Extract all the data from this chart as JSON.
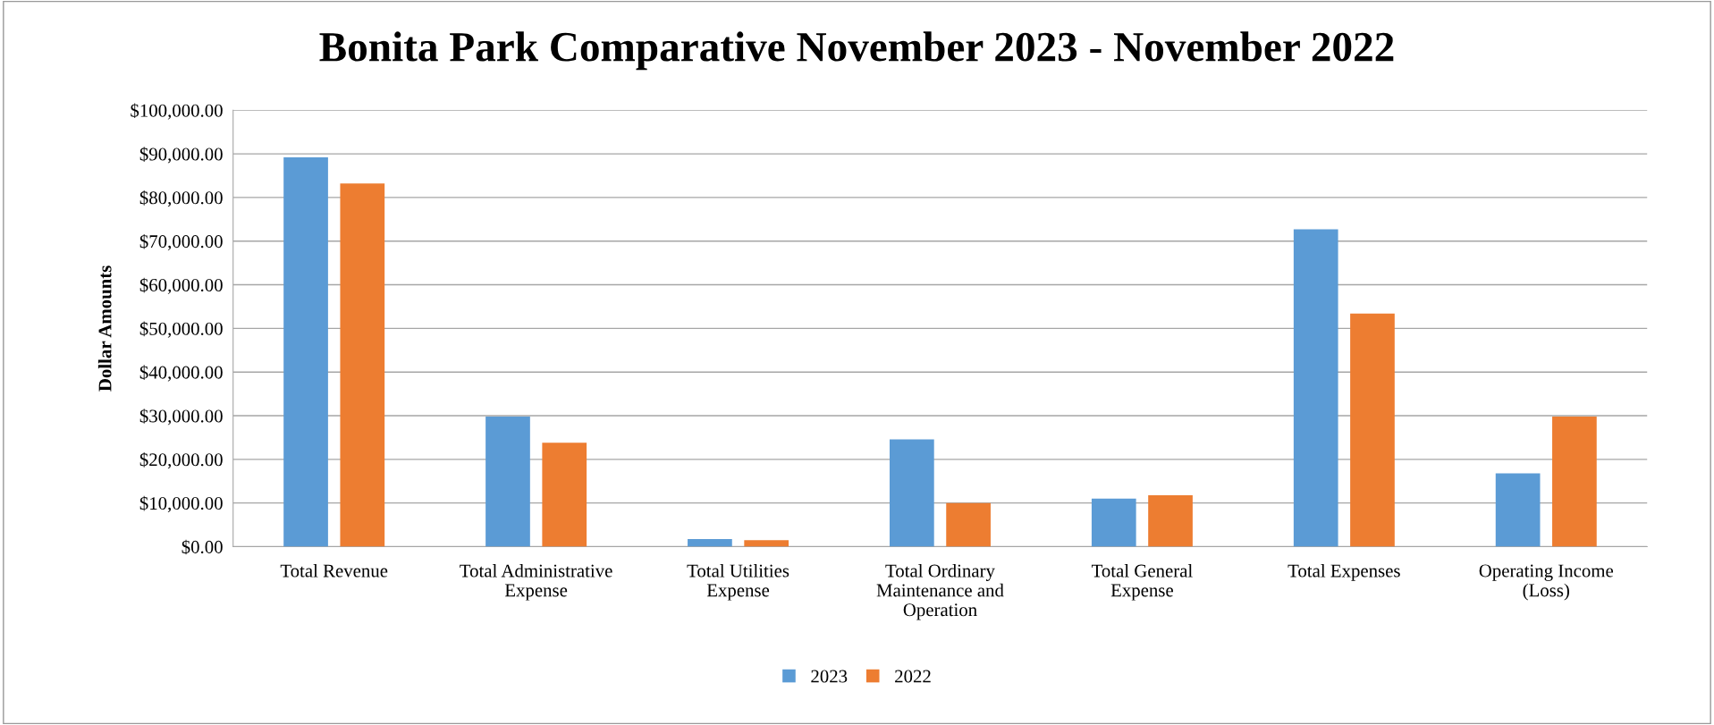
{
  "chart_data": {
    "type": "bar",
    "title": "Bonita Park Comparative November 2023 - November 2022",
    "ylabel": "Dollar Amounts",
    "categories": [
      "Total Revenue",
      "Total Administrative\nExpense",
      "Total Utilities\nExpense",
      "Total Ordinary\nMaintenance and\nOperation",
      "Total General\nExpense",
      "Total Expenses",
      "Operating Income\n(Loss)"
    ],
    "series": [
      {
        "name": "2023",
        "color": "#5b9bd5",
        "values": [
          89200,
          29800,
          1750,
          24600,
          11000,
          72700,
          16800
        ]
      },
      {
        "name": "2022",
        "color": "#ed7d31",
        "values": [
          83200,
          23800,
          1500,
          10000,
          11800,
          53400,
          29800
        ]
      }
    ],
    "ylim": [
      0,
      100000
    ],
    "yticks": [
      {
        "value": 0,
        "label": "$0.00"
      },
      {
        "value": 10000,
        "label": "$10,000.00"
      },
      {
        "value": 20000,
        "label": "$20,000.00"
      },
      {
        "value": 30000,
        "label": "$30,000.00"
      },
      {
        "value": 40000,
        "label": "$40,000.00"
      },
      {
        "value": 50000,
        "label": "$50,000.00"
      },
      {
        "value": 60000,
        "label": "$60,000.00"
      },
      {
        "value": 70000,
        "label": "$70,000.00"
      },
      {
        "value": 80000,
        "label": "$80,000.00"
      },
      {
        "value": 90000,
        "label": "$90,000.00"
      },
      {
        "value": 100000,
        "label": "$100,000.00"
      }
    ],
    "grid": "y",
    "legend": "bottom"
  }
}
